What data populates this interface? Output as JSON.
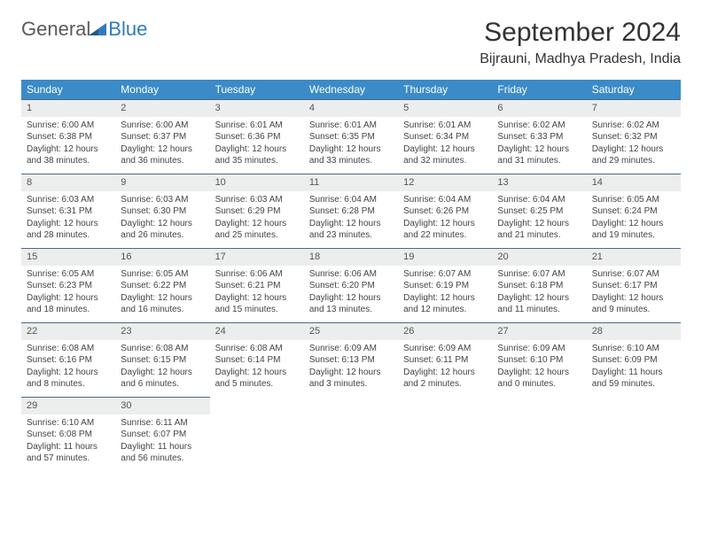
{
  "logo": {
    "general": "General",
    "blue": "Blue"
  },
  "title": "September 2024",
  "location": "Bijrauni, Madhya Pradesh, India",
  "colors": {
    "header_bg": "#3b8bc8",
    "header_text": "#ffffff",
    "daynum_bg": "#eceded",
    "daynum_border": "#4a6a8a",
    "body_text": "#444444",
    "logo_gray": "#5a5a5a",
    "logo_blue": "#2f7bbf"
  },
  "dayNames": [
    "Sunday",
    "Monday",
    "Tuesday",
    "Wednesday",
    "Thursday",
    "Friday",
    "Saturday"
  ],
  "weeks": [
    [
      {
        "n": "1",
        "sr": "Sunrise: 6:00 AM",
        "ss": "Sunset: 6:38 PM",
        "d1": "Daylight: 12 hours",
        "d2": "and 38 minutes."
      },
      {
        "n": "2",
        "sr": "Sunrise: 6:00 AM",
        "ss": "Sunset: 6:37 PM",
        "d1": "Daylight: 12 hours",
        "d2": "and 36 minutes."
      },
      {
        "n": "3",
        "sr": "Sunrise: 6:01 AM",
        "ss": "Sunset: 6:36 PM",
        "d1": "Daylight: 12 hours",
        "d2": "and 35 minutes."
      },
      {
        "n": "4",
        "sr": "Sunrise: 6:01 AM",
        "ss": "Sunset: 6:35 PM",
        "d1": "Daylight: 12 hours",
        "d2": "and 33 minutes."
      },
      {
        "n": "5",
        "sr": "Sunrise: 6:01 AM",
        "ss": "Sunset: 6:34 PM",
        "d1": "Daylight: 12 hours",
        "d2": "and 32 minutes."
      },
      {
        "n": "6",
        "sr": "Sunrise: 6:02 AM",
        "ss": "Sunset: 6:33 PM",
        "d1": "Daylight: 12 hours",
        "d2": "and 31 minutes."
      },
      {
        "n": "7",
        "sr": "Sunrise: 6:02 AM",
        "ss": "Sunset: 6:32 PM",
        "d1": "Daylight: 12 hours",
        "d2": "and 29 minutes."
      }
    ],
    [
      {
        "n": "8",
        "sr": "Sunrise: 6:03 AM",
        "ss": "Sunset: 6:31 PM",
        "d1": "Daylight: 12 hours",
        "d2": "and 28 minutes."
      },
      {
        "n": "9",
        "sr": "Sunrise: 6:03 AM",
        "ss": "Sunset: 6:30 PM",
        "d1": "Daylight: 12 hours",
        "d2": "and 26 minutes."
      },
      {
        "n": "10",
        "sr": "Sunrise: 6:03 AM",
        "ss": "Sunset: 6:29 PM",
        "d1": "Daylight: 12 hours",
        "d2": "and 25 minutes."
      },
      {
        "n": "11",
        "sr": "Sunrise: 6:04 AM",
        "ss": "Sunset: 6:28 PM",
        "d1": "Daylight: 12 hours",
        "d2": "and 23 minutes."
      },
      {
        "n": "12",
        "sr": "Sunrise: 6:04 AM",
        "ss": "Sunset: 6:26 PM",
        "d1": "Daylight: 12 hours",
        "d2": "and 22 minutes."
      },
      {
        "n": "13",
        "sr": "Sunrise: 6:04 AM",
        "ss": "Sunset: 6:25 PM",
        "d1": "Daylight: 12 hours",
        "d2": "and 21 minutes."
      },
      {
        "n": "14",
        "sr": "Sunrise: 6:05 AM",
        "ss": "Sunset: 6:24 PM",
        "d1": "Daylight: 12 hours",
        "d2": "and 19 minutes."
      }
    ],
    [
      {
        "n": "15",
        "sr": "Sunrise: 6:05 AM",
        "ss": "Sunset: 6:23 PM",
        "d1": "Daylight: 12 hours",
        "d2": "and 18 minutes."
      },
      {
        "n": "16",
        "sr": "Sunrise: 6:05 AM",
        "ss": "Sunset: 6:22 PM",
        "d1": "Daylight: 12 hours",
        "d2": "and 16 minutes."
      },
      {
        "n": "17",
        "sr": "Sunrise: 6:06 AM",
        "ss": "Sunset: 6:21 PM",
        "d1": "Daylight: 12 hours",
        "d2": "and 15 minutes."
      },
      {
        "n": "18",
        "sr": "Sunrise: 6:06 AM",
        "ss": "Sunset: 6:20 PM",
        "d1": "Daylight: 12 hours",
        "d2": "and 13 minutes."
      },
      {
        "n": "19",
        "sr": "Sunrise: 6:07 AM",
        "ss": "Sunset: 6:19 PM",
        "d1": "Daylight: 12 hours",
        "d2": "and 12 minutes."
      },
      {
        "n": "20",
        "sr": "Sunrise: 6:07 AM",
        "ss": "Sunset: 6:18 PM",
        "d1": "Daylight: 12 hours",
        "d2": "and 11 minutes."
      },
      {
        "n": "21",
        "sr": "Sunrise: 6:07 AM",
        "ss": "Sunset: 6:17 PM",
        "d1": "Daylight: 12 hours",
        "d2": "and 9 minutes."
      }
    ],
    [
      {
        "n": "22",
        "sr": "Sunrise: 6:08 AM",
        "ss": "Sunset: 6:16 PM",
        "d1": "Daylight: 12 hours",
        "d2": "and 8 minutes."
      },
      {
        "n": "23",
        "sr": "Sunrise: 6:08 AM",
        "ss": "Sunset: 6:15 PM",
        "d1": "Daylight: 12 hours",
        "d2": "and 6 minutes."
      },
      {
        "n": "24",
        "sr": "Sunrise: 6:08 AM",
        "ss": "Sunset: 6:14 PM",
        "d1": "Daylight: 12 hours",
        "d2": "and 5 minutes."
      },
      {
        "n": "25",
        "sr": "Sunrise: 6:09 AM",
        "ss": "Sunset: 6:13 PM",
        "d1": "Daylight: 12 hours",
        "d2": "and 3 minutes."
      },
      {
        "n": "26",
        "sr": "Sunrise: 6:09 AM",
        "ss": "Sunset: 6:11 PM",
        "d1": "Daylight: 12 hours",
        "d2": "and 2 minutes."
      },
      {
        "n": "27",
        "sr": "Sunrise: 6:09 AM",
        "ss": "Sunset: 6:10 PM",
        "d1": "Daylight: 12 hours",
        "d2": "and 0 minutes."
      },
      {
        "n": "28",
        "sr": "Sunrise: 6:10 AM",
        "ss": "Sunset: 6:09 PM",
        "d1": "Daylight: 11 hours",
        "d2": "and 59 minutes."
      }
    ],
    [
      {
        "n": "29",
        "sr": "Sunrise: 6:10 AM",
        "ss": "Sunset: 6:08 PM",
        "d1": "Daylight: 11 hours",
        "d2": "and 57 minutes."
      },
      {
        "n": "30",
        "sr": "Sunrise: 6:11 AM",
        "ss": "Sunset: 6:07 PM",
        "d1": "Daylight: 11 hours",
        "d2": "and 56 minutes."
      },
      null,
      null,
      null,
      null,
      null
    ]
  ]
}
